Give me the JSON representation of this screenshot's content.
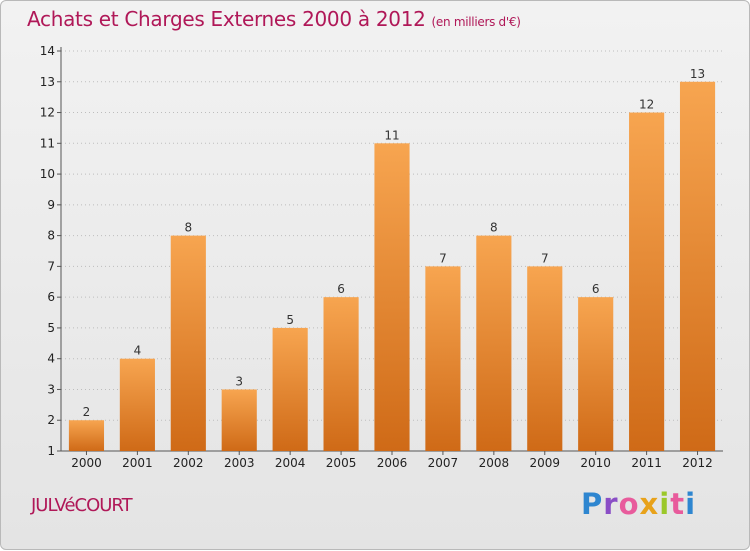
{
  "header": {
    "title": "Achats et Charges Externes 2000 à 2012",
    "unit": "(en milliers d'€)"
  },
  "footer": {
    "commune": "JULVéCOURT",
    "brand_letters": [
      "P",
      "r",
      "o",
      "x",
      "i",
      "t",
      "i"
    ],
    "brand_colors": [
      "#2e86d0",
      "#8a4ec6",
      "#e85b9c",
      "#e8a21a",
      "#9bc82a",
      "#e85b9c",
      "#2e86d0"
    ]
  },
  "colors": {
    "bar_top": "#f7a550",
    "bar_bottom": "#cf6a17",
    "accent": "#b01858"
  },
  "chart_data": {
    "type": "bar",
    "title": "Achats et Charges Externes 2000 à 2012",
    "subtitle": "(en milliers d'€)",
    "xlabel": "",
    "ylabel": "",
    "categories": [
      "2000",
      "2001",
      "2002",
      "2003",
      "2004",
      "2005",
      "2006",
      "2007",
      "2008",
      "2009",
      "2010",
      "2011",
      "2012"
    ],
    "values": [
      2,
      4,
      8,
      3,
      5,
      6,
      11,
      7,
      8,
      7,
      6,
      12,
      13
    ],
    "ylim": [
      1,
      14
    ],
    "yticks": [
      1,
      2,
      3,
      4,
      5,
      6,
      7,
      8,
      9,
      10,
      11,
      12,
      13,
      14
    ],
    "grid": true,
    "legend": "none"
  }
}
